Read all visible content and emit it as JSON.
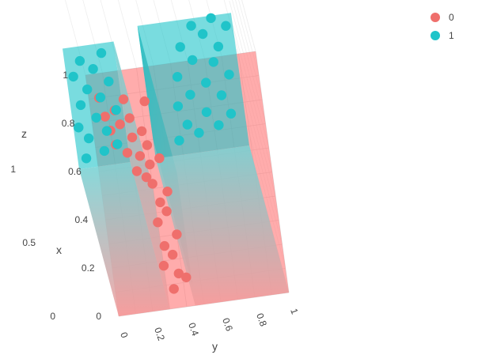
{
  "chart_data": {
    "type": "scatter",
    "projection": "3d",
    "x_axis": {
      "title": "x",
      "range": [
        0,
        1
      ],
      "ticks": [
        "0",
        "0.2",
        "0.4",
        "0.6",
        "0.8",
        "1"
      ]
    },
    "y_axis": {
      "title": "y",
      "range": [
        0,
        1
      ],
      "ticks": [
        "0",
        "0.2",
        "0.4",
        "0.6",
        "0.8",
        "1"
      ]
    },
    "z_axis": {
      "title": "z",
      "range": [
        0,
        1
      ],
      "ticks": [
        "0",
        "0.5",
        "1"
      ]
    },
    "grid": true,
    "legend_position": "top-right",
    "legend": [
      {
        "name": "0",
        "color": "#ef6f6c"
      },
      {
        "name": "1",
        "color": "#20c4c9"
      }
    ],
    "surfaces": [
      {
        "class": "1",
        "region": "y < 0.3 and x < 0.5",
        "z": 1,
        "color": "#20c4c9"
      },
      {
        "class": "1",
        "region": "y > 0.45 and x < 0.55",
        "z": 1,
        "color": "#20c4c9"
      },
      {
        "class": "0",
        "region": "remaining",
        "z": 0,
        "color": "#ff7f7f"
      }
    ],
    "series": [
      {
        "name": "0",
        "color": "#ef6f6c",
        "points": [
          [
            0.08,
            0.34,
            0
          ],
          [
            0.14,
            0.38,
            0
          ],
          [
            0.12,
            0.42,
            0
          ],
          [
            0.18,
            0.3,
            0
          ],
          [
            0.22,
            0.36,
            0
          ],
          [
            0.26,
            0.32,
            0
          ],
          [
            0.3,
            0.4,
            0
          ],
          [
            0.36,
            0.3,
            0
          ],
          [
            0.4,
            0.36,
            0
          ],
          [
            0.44,
            0.33,
            0
          ],
          [
            0.48,
            0.38,
            0
          ],
          [
            0.52,
            0.3,
            0
          ],
          [
            0.55,
            0.27,
            0
          ],
          [
            0.58,
            0.22,
            0
          ],
          [
            0.6,
            0.3,
            0
          ],
          [
            0.62,
            0.36,
            0
          ],
          [
            0.64,
            0.25,
            0
          ],
          [
            0.66,
            0.18,
            0
          ],
          [
            0.68,
            0.3,
            0
          ],
          [
            0.7,
            0.12,
            0
          ],
          [
            0.72,
            0.22,
            0
          ],
          [
            0.74,
            0.28,
            0
          ],
          [
            0.76,
            0.1,
            0
          ],
          [
            0.78,
            0.16,
            0
          ],
          [
            0.8,
            0.22,
            0
          ],
          [
            0.82,
            0.08,
            0
          ],
          [
            0.84,
            0.14,
            0
          ],
          [
            0.86,
            0.32,
            0
          ],
          [
            0.88,
            0.2,
            0
          ],
          [
            0.9,
            0.06,
            0
          ]
        ]
      },
      {
        "name": "1",
        "color": "#20c4c9",
        "points": [
          [
            0.04,
            0.05,
            1
          ],
          [
            0.06,
            0.16,
            1
          ],
          [
            0.08,
            0.24,
            1
          ],
          [
            0.12,
            0.08,
            1
          ],
          [
            0.14,
            0.19,
            1
          ],
          [
            0.17,
            0.03,
            1
          ],
          [
            0.2,
            0.14,
            1
          ],
          [
            0.22,
            0.26,
            1
          ],
          [
            0.26,
            0.06,
            1
          ],
          [
            0.28,
            0.18,
            1
          ],
          [
            0.32,
            0.11,
            1
          ],
          [
            0.34,
            0.24,
            1
          ],
          [
            0.38,
            0.04,
            1
          ],
          [
            0.4,
            0.16,
            1
          ],
          [
            0.44,
            0.09,
            1
          ],
          [
            0.46,
            0.22,
            1
          ],
          [
            0.06,
            0.6,
            1
          ],
          [
            0.08,
            0.72,
            1
          ],
          [
            0.1,
            0.84,
            1
          ],
          [
            0.12,
            0.66,
            1
          ],
          [
            0.14,
            0.92,
            1
          ],
          [
            0.16,
            0.78,
            1
          ],
          [
            0.2,
            0.62,
            1
          ],
          [
            0.22,
            0.88,
            1
          ],
          [
            0.24,
            0.7,
            1
          ],
          [
            0.28,
            0.8,
            1
          ],
          [
            0.3,
            0.94,
            1
          ],
          [
            0.32,
            0.64,
            1
          ],
          [
            0.36,
            0.86,
            1
          ],
          [
            0.38,
            0.74,
            1
          ],
          [
            0.42,
            0.9,
            1
          ],
          [
            0.44,
            0.68,
            1
          ],
          [
            0.48,
            0.82,
            1
          ],
          [
            0.5,
            0.96,
            1
          ],
          [
            0.52,
            0.76,
            1
          ],
          [
            0.54,
            0.88,
            1
          ]
        ]
      }
    ]
  }
}
